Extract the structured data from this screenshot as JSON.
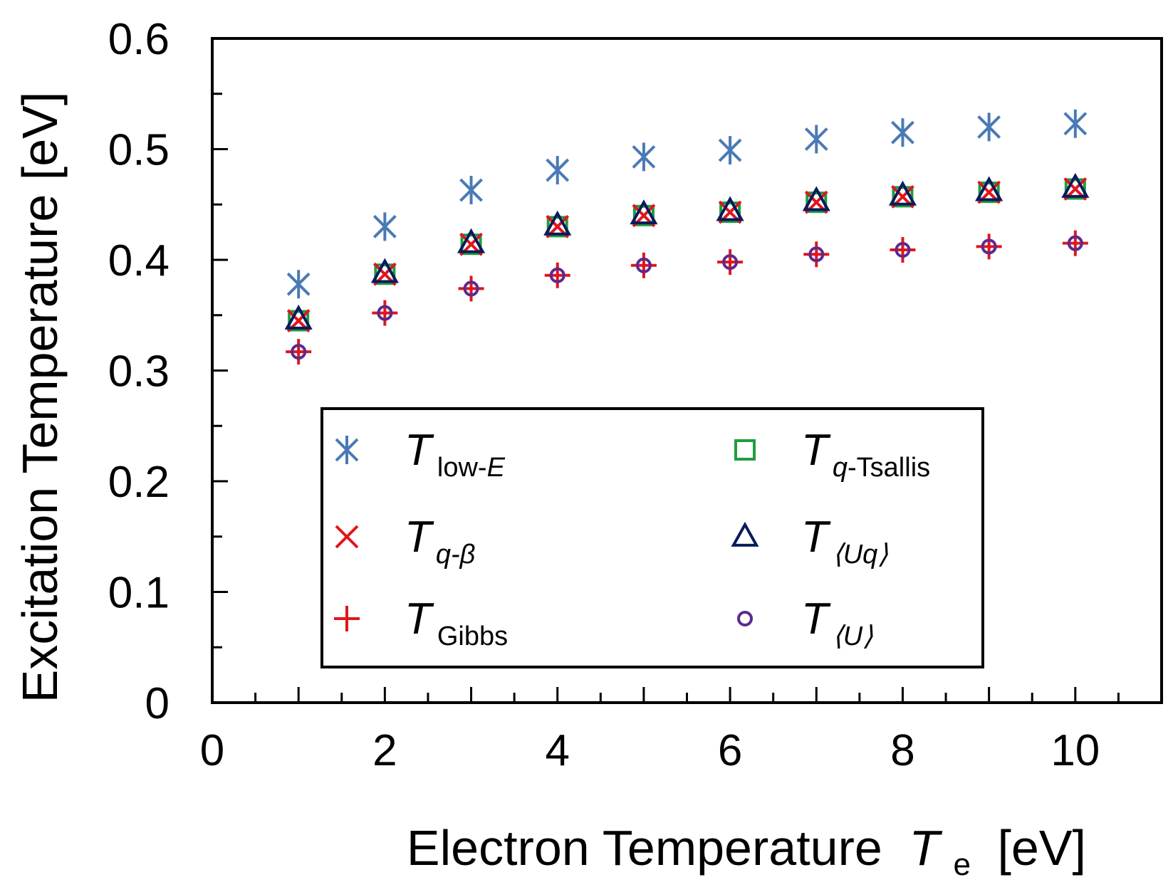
{
  "chart_data": {
    "type": "scatter",
    "title": "",
    "xlabel": "Electron Temperature",
    "xlabel_symbol": "T",
    "xlabel_subscript": "e",
    "xlabel_unit": "[eV]",
    "ylabel": "Excitation Temperature [eV]",
    "xlim": [
      0,
      11
    ],
    "ylim": [
      0,
      0.6
    ],
    "x_ticks": [
      0,
      2,
      4,
      6,
      8,
      10
    ],
    "x_tick_labels": [
      "0",
      "2",
      "4",
      "6",
      "8",
      "10"
    ],
    "y_ticks": [
      0,
      0.1,
      0.2,
      0.3,
      0.4,
      0.5,
      0.6
    ],
    "y_tick_labels": [
      "0",
      "0.1",
      "0.2",
      "0.3",
      "0.4",
      "0.5",
      "0.6"
    ],
    "grid": false,
    "legend_position": "bottom-center",
    "x": [
      1,
      2,
      3,
      4,
      5,
      6,
      7,
      8,
      9,
      10
    ],
    "series": [
      {
        "name": "T_low-E",
        "symbol": "T",
        "subscript": "low-E",
        "marker": "asterisk",
        "color": "#4a7ab5",
        "values": [
          0.378,
          0.43,
          0.463,
          0.481,
          0.493,
          0.499,
          0.509,
          0.515,
          0.52,
          0.523
        ]
      },
      {
        "name": "T_q-Tsallis",
        "symbol": "T",
        "subscript": "q-Tsallis",
        "marker": "square",
        "color": "#1e9e3e",
        "values": [
          0.345,
          0.387,
          0.414,
          0.43,
          0.44,
          0.443,
          0.452,
          0.457,
          0.461,
          0.464
        ]
      },
      {
        "name": "T_q-beta",
        "symbol": "T",
        "subscript": "q-β",
        "marker": "x",
        "color": "#e0161b",
        "values": [
          0.345,
          0.387,
          0.414,
          0.43,
          0.44,
          0.443,
          0.452,
          0.457,
          0.461,
          0.464
        ]
      },
      {
        "name": "T_<Uq>",
        "symbol": "T",
        "subscript": "⟨Uq⟩",
        "marker": "triangle",
        "color": "#0a1a5c",
        "values": [
          0.346,
          0.388,
          0.415,
          0.431,
          0.441,
          0.444,
          0.453,
          0.458,
          0.462,
          0.465
        ]
      },
      {
        "name": "T_Gibbs",
        "symbol": "T",
        "subscript": "Gibbs",
        "marker": "plus",
        "color": "#e0161b",
        "values": [
          0.317,
          0.352,
          0.374,
          0.386,
          0.395,
          0.398,
          0.405,
          0.409,
          0.412,
          0.415
        ]
      },
      {
        "name": "T_<U>",
        "symbol": "T",
        "subscript": "⟨U⟩",
        "marker": "circle",
        "color": "#5b2a8e",
        "values": [
          0.317,
          0.352,
          0.374,
          0.386,
          0.395,
          0.398,
          0.405,
          0.409,
          0.412,
          0.415
        ]
      }
    ],
    "draw_order": [
      4,
      5,
      1,
      2,
      3,
      0
    ],
    "legend": [
      {
        "series": 0,
        "label_symbol": "T",
        "label_sub": "low-",
        "label_sub_italic": "E"
      },
      {
        "series": 1,
        "label_symbol": "T",
        "label_sub_italic": "q",
        "label_sub": "-Tsallis"
      },
      {
        "series": 2,
        "label_symbol": "T",
        "label_sub_italic": "q-β",
        "label_sub": ""
      },
      {
        "series": 3,
        "label_symbol": "T",
        "label_sub_italic": "⟨Uq⟩",
        "label_sub": ""
      },
      {
        "series": 4,
        "label_symbol": "T",
        "label_sub": "Gibbs",
        "label_sub_italic": ""
      },
      {
        "series": 5,
        "label_symbol": "T",
        "label_sub_italic": "⟨U⟩",
        "label_sub": ""
      }
    ]
  }
}
